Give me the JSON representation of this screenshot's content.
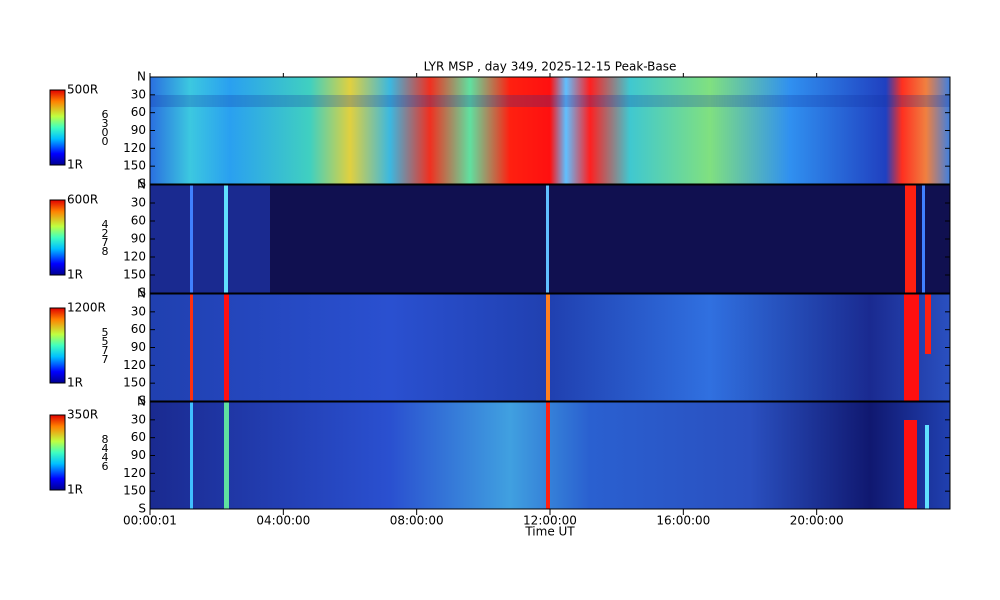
{
  "chart_data": [
    {
      "type": "heatmap",
      "title": "LYR MSP , day 349, 2025-12-15 Peak-Base",
      "channel": "6300",
      "ylim": [
        0,
        180
      ],
      "yticks": [
        {
          "value": 0,
          "label": "N"
        },
        30,
        60,
        90,
        120,
        150,
        {
          "value": 180,
          "label": "S"
        }
      ],
      "clim": [
        1,
        500
      ],
      "cticks": [
        {
          "value": 1,
          "label": "1R"
        },
        {
          "value": 500,
          "label": "500R"
        }
      ]
    },
    {
      "type": "heatmap",
      "channel": "4278",
      "ylim": [
        0,
        180
      ],
      "yticks": [
        {
          "value": 0,
          "label": "N"
        },
        30,
        60,
        90,
        120,
        150,
        {
          "value": 180,
          "label": "S"
        }
      ],
      "clim": [
        1,
        600
      ],
      "cticks": [
        {
          "value": 1,
          "label": "1R"
        },
        {
          "value": 600,
          "label": "600R"
        }
      ]
    },
    {
      "type": "heatmap",
      "channel": "5577",
      "ylim": [
        0,
        180
      ],
      "yticks": [
        {
          "value": 0,
          "label": "N"
        },
        30,
        60,
        90,
        120,
        150,
        {
          "value": 180,
          "label": "S"
        }
      ],
      "clim": [
        1,
        1200
      ],
      "cticks": [
        {
          "value": 1,
          "label": "1R"
        },
        {
          "value": 1200,
          "label": "1200R"
        }
      ]
    },
    {
      "type": "heatmap",
      "channel": "8446",
      "ylim": [
        0,
        180
      ],
      "yticks": [
        {
          "value": 0,
          "label": "N"
        },
        30,
        60,
        90,
        120,
        150,
        {
          "value": 180,
          "label": "S"
        }
      ],
      "clim": [
        1,
        350
      ],
      "cticks": [
        {
          "value": 1,
          "label": "1R"
        },
        {
          "value": 350,
          "label": "350R"
        }
      ],
      "x_label": "Time UT",
      "xlim": [
        0,
        86400
      ],
      "xticks": [
        {
          "value": 1,
          "label": "00:00:01"
        },
        {
          "value": 14400,
          "label": "04:00:00"
        },
        {
          "value": 28800,
          "label": "08:00:00"
        },
        {
          "value": 43200,
          "label": "12:00:00"
        },
        {
          "value": 57600,
          "label": "16:00:00"
        },
        {
          "value": 72000,
          "label": "20:00:00"
        }
      ]
    }
  ]
}
